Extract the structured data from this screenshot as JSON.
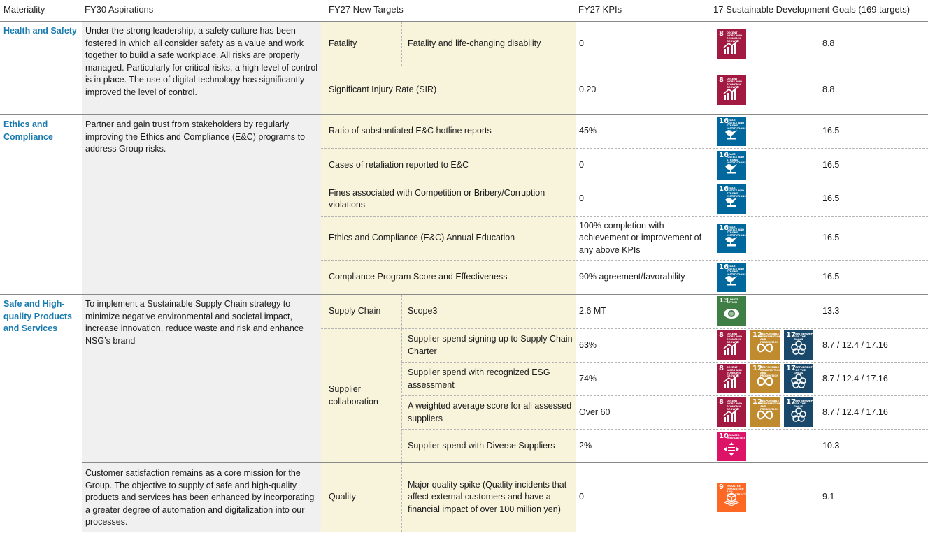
{
  "headers": {
    "materiality": "Materiality",
    "aspirations": "FY30 Aspirations",
    "targets": "FY27 New Targets",
    "kpis": "FY27 KPIs",
    "sdgs": "17 Sustainable Development Goals (169 targets)"
  },
  "sections": {
    "health": {
      "materiality": "Health and Safety",
      "aspiration": "Under the strong leadership, a safety culture has been fostered in which all consider safety as a value and work together to build a safe workplace. All risks are properly managed. Particularly for critical risks, a high level of control is in place. The use of digital technology has significantly improved the level of control.",
      "rows": [
        {
          "target": "Fatality",
          "subtarget": "Fatality and life-changing disability",
          "kpi": "0",
          "sdg_targets": "8.8"
        },
        {
          "target": "Significant Injury Rate (SIR)",
          "kpi": "0.20",
          "sdg_targets": "8.8"
        }
      ]
    },
    "ethics": {
      "materiality": "Ethics and Compliance",
      "aspiration": "Partner and gain trust from stakeholders by regularly improving the Ethics and Compliance (E&C) programs to address Group risks.",
      "rows": [
        {
          "target": "Ratio of substantiated E&C hotline reports",
          "kpi": "45%",
          "sdg_targets": "16.5"
        },
        {
          "target": "Cases of retaliation reported to E&C",
          "kpi": "0",
          "sdg_targets": "16.5"
        },
        {
          "target": "Fines associated with Competition or Bribery/Corruption violations",
          "kpi": "0",
          "sdg_targets": "16.5"
        },
        {
          "target": "Ethics and Compliance (E&C) Annual Education",
          "kpi": "100% completion with achievement or improvement of any above KPIs",
          "sdg_targets": "16.5"
        },
        {
          "target": "Compliance Program Score and Effectiveness",
          "kpi": "90% agreement/favorability",
          "sdg_targets": "16.5"
        }
      ]
    },
    "safe": {
      "materiality": "Safe and High-quality Products and Services",
      "aspiration": "To implement a Sustainable Supply Chain strategy to minimize negative environmental and societal impact, increase innovation, reduce waste and risk and enhance NSG’s brand",
      "aspiration2": "Customer satisfaction remains as a core mission for the Group. The objective to supply of safe and high-quality products and services has been enhanced by incorporating a greater degree of automation and digitalization into our processes.",
      "supply_chain_label": "Supply Chain",
      "supplier_collab_label": "Supplier collaboration",
      "quality_label": "Quality",
      "rows": [
        {
          "subtarget": "Scope3",
          "kpi": "2.6 MT",
          "sdg_targets": "13.3"
        },
        {
          "subtarget": "Supplier spend signing up to Supply Chain Charter",
          "kpi": "63%",
          "sdg_targets": "8.7 / 12.4 / 17.16"
        },
        {
          "subtarget": "Supplier spend with recognized ESG assessment",
          "kpi": "74%",
          "sdg_targets": "8.7 / 12.4 / 17.16"
        },
        {
          "subtarget": "A weighted average score for all assessed suppliers",
          "kpi": "Over 60",
          "sdg_targets": "8.7 / 12.4 / 17.16"
        },
        {
          "subtarget": "Supplier spend with Diverse Suppliers",
          "kpi": "2%",
          "sdg_targets": "10.3"
        },
        {
          "subtarget": "Major quality spike (Quality incidents that affect external customers and have a financial impact of over 100 million yen)",
          "kpi": "0",
          "sdg_targets": "9.1"
        }
      ]
    }
  },
  "sdg_icons": {
    "8": {
      "num": "8",
      "caption": "DECENT WORK AND ECONOMIC GROWTH",
      "color": "#a21942",
      "icon": "growth-chart-icon"
    },
    "16": {
      "num": "16",
      "caption": "PEACE, JUSTICE AND STRONG INSTITUTIONS",
      "color": "#00689d",
      "icon": "dove-gavel-icon"
    },
    "13": {
      "num": "13",
      "caption": "CLIMATE ACTION",
      "color": "#3f7e44",
      "icon": "eye-globe-icon"
    },
    "12": {
      "num": "12",
      "caption": "RESPONSIBLE CONSUMPTION AND PRODUCTION",
      "color": "#bf8b2e",
      "icon": "infinity-icon"
    },
    "17": {
      "num": "17",
      "caption": "PARTNERSHIPS FOR THE GOALS",
      "color": "#19486a",
      "icon": "rings-icon"
    },
    "10": {
      "num": "10",
      "caption": "REDUCED INEQUALITIES",
      "color": "#dd1367",
      "icon": "equality-icon"
    },
    "9": {
      "num": "9",
      "caption": "INDUSTRY, INNOVATION AND INFRASTRUCTURE",
      "color": "#fd6925",
      "icon": "cubes-icon"
    }
  }
}
